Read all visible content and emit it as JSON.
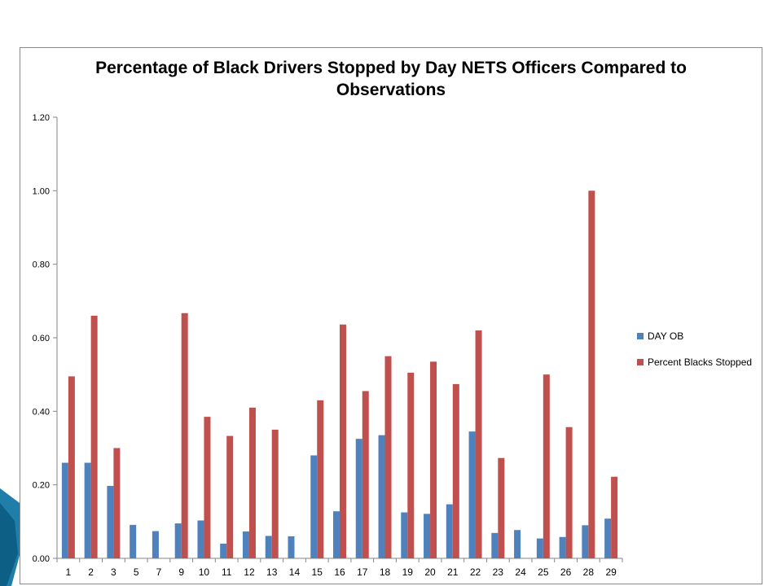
{
  "chart_data": {
    "type": "bar",
    "title": "Percentage of Black Drivers Stopped by Day NETS Officers Compared to Observations",
    "title_lines": [
      "Percentage of Black Drivers Stopped by Day NETS Officers Compared to",
      "Observations"
    ],
    "xlabel": "",
    "ylabel": "",
    "ylim": [
      0,
      1.2
    ],
    "yticks": [
      "0.00",
      "0.20",
      "0.40",
      "0.60",
      "0.80",
      "1.00",
      "1.20"
    ],
    "grid": false,
    "legend_position": "right",
    "categories": [
      "1",
      "2",
      "3",
      "5",
      "7",
      "9",
      "10",
      "11",
      "12",
      "13",
      "14",
      "15",
      "16",
      "17",
      "18",
      "19",
      "20",
      "21",
      "22",
      "23",
      "24",
      "25",
      "26",
      "28",
      "29"
    ],
    "series": [
      {
        "name": "DAY OB",
        "color": "#4F81BD",
        "values": [
          0.26,
          0.26,
          0.197,
          0.091,
          0.074,
          0.095,
          0.103,
          0.04,
          0.073,
          0.061,
          0.06,
          0.28,
          0.128,
          0.325,
          0.335,
          0.125,
          0.121,
          0.147,
          0.345,
          0.069,
          0.077,
          0.054,
          0.058,
          0.09,
          0.108
        ]
      },
      {
        "name": "Percent Blacks Stopped",
        "color": "#C0504D",
        "values": [
          0.495,
          0.66,
          0.3,
          0,
          0,
          0.667,
          0.385,
          0.333,
          0.41,
          0.35,
          0,
          0.43,
          0.636,
          0.455,
          0.55,
          0.505,
          0.535,
          0.474,
          0.62,
          0.273,
          0,
          0.5,
          0.357,
          1.0,
          0.222
        ]
      }
    ]
  }
}
